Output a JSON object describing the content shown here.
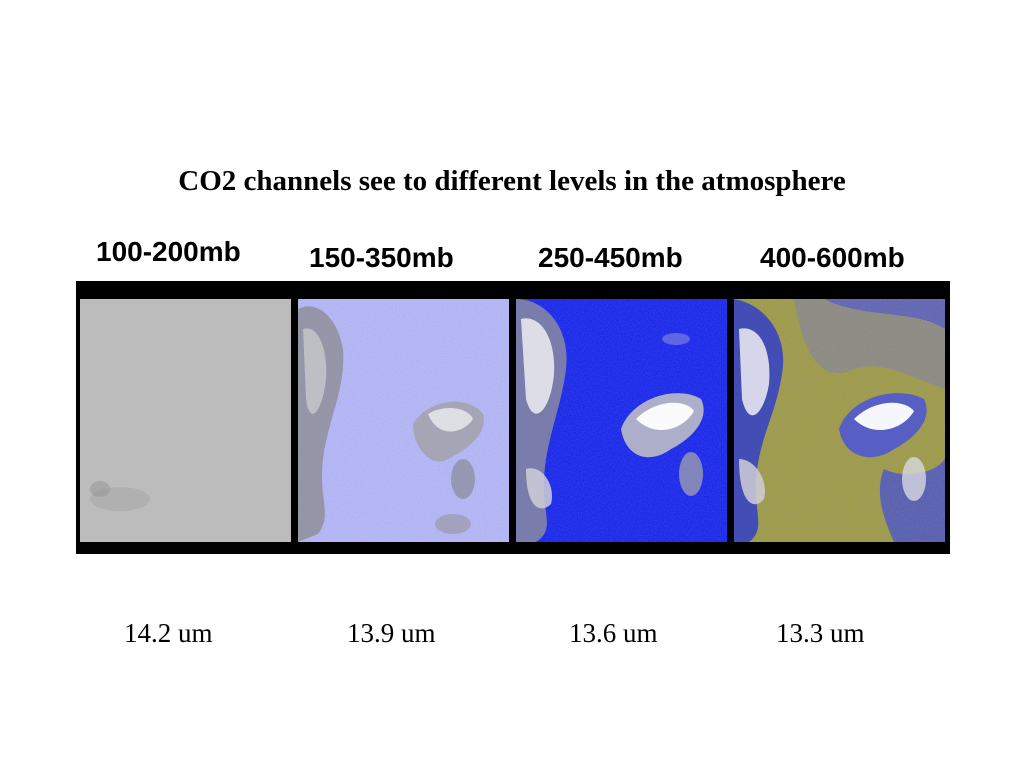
{
  "slide": {
    "title": "CO2 channels see to different levels in the atmosphere"
  },
  "channels": [
    {
      "pressure_range": "100-200mb",
      "wavelength": "14.2 um",
      "dominant_color": "#b8b8b8"
    },
    {
      "pressure_range": "150-350mb",
      "wavelength": "13.9 um",
      "dominant_color": "#a9acf2"
    },
    {
      "pressure_range": "250-450mb",
      "wavelength": "13.6 um",
      "dominant_color": "#0f1fe6"
    },
    {
      "pressure_range": "400-600mb",
      "wavelength": "13.3 um",
      "dominant_color": "#9d9a36"
    }
  ]
}
